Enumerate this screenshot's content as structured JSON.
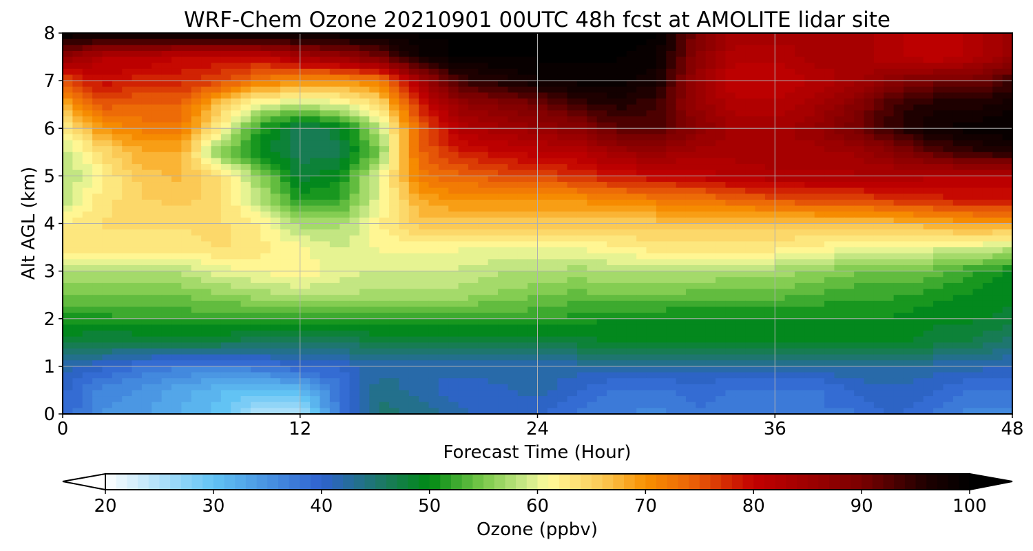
{
  "chart_data": {
    "type": "heatmap",
    "title": "WRF-Chem Ozone  20210901 00UTC 48h fcst at AMOLITE lidar site",
    "xlabel": "Forecast Time (Hour)",
    "ylabel": "Alt AGL (km)",
    "xlim": [
      0,
      48
    ],
    "ylim": [
      0,
      8
    ],
    "x_ticks": [
      "0",
      "12",
      "24",
      "36",
      "48"
    ],
    "y_ticks": [
      "0",
      "1",
      "2",
      "3",
      "4",
      "5",
      "6",
      "7",
      "8"
    ],
    "grid": true,
    "x": [
      0,
      2,
      4,
      6,
      8,
      10,
      12,
      14,
      16,
      18,
      20,
      22,
      24,
      26,
      28,
      30,
      32,
      34,
      36,
      38,
      40,
      42,
      44,
      46,
      48
    ],
    "y": [
      0,
      0.5,
      1,
      1.5,
      2,
      2.5,
      3,
      3.5,
      4,
      4.5,
      5,
      5.5,
      6,
      6.5,
      7,
      7.5,
      8
    ],
    "z_rows_by_altitude": [
      [
        40,
        35,
        34,
        32,
        30,
        25,
        25,
        38,
        45,
        44,
        42,
        40,
        40,
        38,
        37,
        36,
        38,
        37,
        37,
        38,
        38,
        40,
        38,
        36,
        36
      ],
      [
        40,
        36,
        35,
        33,
        31,
        30,
        31,
        38,
        44,
        42,
        40,
        41,
        42,
        40,
        38,
        38,
        39,
        38,
        38,
        38,
        40,
        41,
        40,
        38,
        38
      ],
      [
        42,
        40,
        38,
        37,
        37,
        38,
        40,
        40,
        42,
        42,
        42,
        42,
        42,
        42,
        42,
        42,
        42,
        42,
        42,
        42,
        43,
        43,
        42,
        42,
        41
      ],
      [
        48,
        47,
        47,
        47,
        47,
        46,
        45,
        46,
        47,
        47,
        47,
        47,
        47,
        48,
        49,
        49,
        49,
        49,
        49,
        49,
        49,
        49,
        48,
        47,
        45
      ],
      [
        51,
        51,
        52,
        52,
        52,
        52,
        52,
        52,
        52,
        52,
        52,
        52,
        52,
        51,
        50,
        50,
        50,
        50,
        50,
        50,
        50,
        50,
        49,
        49,
        48
      ],
      [
        55,
        55,
        55,
        55,
        56,
        57,
        58,
        58,
        57,
        57,
        57,
        56,
        55,
        54,
        55,
        55,
        54,
        54,
        54,
        53,
        52,
        52,
        51,
        50,
        49
      ],
      [
        58,
        58,
        58,
        58,
        60,
        61,
        62,
        60,
        59,
        59,
        59,
        58,
        58,
        57,
        58,
        58,
        58,
        57,
        57,
        56,
        55,
        55,
        54,
        52,
        50
      ],
      [
        63,
        63,
        63,
        63,
        64,
        63,
        61,
        59,
        61,
        61,
        61,
        61,
        61,
        61,
        62,
        63,
        63,
        63,
        63,
        62,
        61,
        60,
        60,
        60,
        58
      ],
      [
        62,
        64,
        64,
        64,
        64,
        62,
        57,
        57,
        62,
        66,
        66,
        66,
        66,
        66,
        66,
        66,
        66,
        66,
        66,
        66,
        66,
        67,
        68,
        69,
        69
      ],
      [
        58,
        63,
        65,
        66,
        64,
        58,
        51,
        52,
        60,
        68,
        70,
        70,
        70,
        70,
        71,
        72,
        72,
        74,
        75,
        76,
        76,
        77,
        78,
        79,
        79
      ],
      [
        57,
        62,
        66,
        67,
        64,
        56,
        48,
        50,
        60,
        72,
        74,
        75,
        76,
        77,
        79,
        80,
        81,
        82,
        83,
        83,
        83,
        83,
        82,
        82,
        82
      ],
      [
        58,
        64,
        68,
        68,
        55,
        50,
        46,
        47,
        55,
        74,
        78,
        80,
        81,
        82,
        85,
        86,
        84,
        84,
        84,
        84,
        85,
        88,
        92,
        95,
        96
      ],
      [
        62,
        70,
        72,
        72,
        62,
        51,
        46,
        48,
        58,
        74,
        82,
        84,
        86,
        88,
        92,
        93,
        88,
        84,
        84,
        86,
        90,
        95,
        98,
        99,
        100
      ],
      [
        68,
        75,
        74,
        74,
        66,
        60,
        58,
        60,
        64,
        78,
        86,
        88,
        90,
        94,
        96,
        94,
        86,
        82,
        82,
        84,
        88,
        94,
        96,
        96,
        98
      ],
      [
        75,
        80,
        78,
        78,
        76,
        72,
        70,
        70,
        72,
        84,
        94,
        96,
        98,
        99,
        99,
        97,
        86,
        80,
        80,
        82,
        84,
        88,
        90,
        90,
        94
      ],
      [
        88,
        82,
        82,
        80,
        80,
        80,
        84,
        86,
        90,
        98,
        100,
        100,
        100,
        100,
        100,
        99,
        88,
        82,
        82,
        84,
        84,
        82,
        80,
        82,
        86
      ],
      [
        100,
        100,
        100,
        100,
        100,
        100,
        100,
        100,
        100,
        100,
        100,
        100,
        100,
        100,
        100,
        100,
        90,
        84,
        84,
        84,
        84,
        82,
        80,
        82,
        86
      ]
    ],
    "colorbar": {
      "label": "Ozone  (ppbv)",
      "min": 20,
      "max": 100,
      "ticks": [
        "20",
        "30",
        "40",
        "50",
        "60",
        "70",
        "80",
        "90",
        "100"
      ],
      "extend": "both",
      "colors": [
        {
          "v": 20,
          "c": "#ffffff"
        },
        {
          "v": 30,
          "c": "#62c3f4"
        },
        {
          "v": 40,
          "c": "#2f62cf"
        },
        {
          "v": 46,
          "c": "#1a7a5c"
        },
        {
          "v": 50,
          "c": "#008a14"
        },
        {
          "v": 55,
          "c": "#7ac94a"
        },
        {
          "v": 59,
          "c": "#cdea8a"
        },
        {
          "v": 61,
          "c": "#fffb9a"
        },
        {
          "v": 66,
          "c": "#fbc955"
        },
        {
          "v": 70,
          "c": "#f79000"
        },
        {
          "v": 74,
          "c": "#ec6608"
        },
        {
          "v": 80,
          "c": "#c30000"
        },
        {
          "v": 90,
          "c": "#7a0000"
        },
        {
          "v": 96,
          "c": "#1e0000"
        },
        {
          "v": 100,
          "c": "#000000"
        }
      ]
    }
  }
}
